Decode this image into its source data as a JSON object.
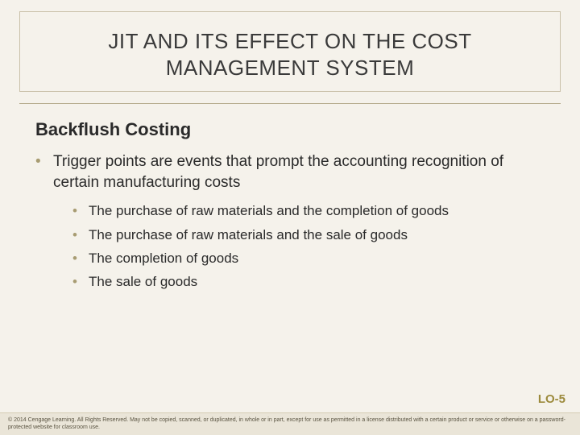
{
  "slide": {
    "title_line1": "JIT AND ITS EFFECT ON THE COST",
    "title_line2": "MANAGEMENT SYSTEM",
    "title_color": "#3a3a3a",
    "title_fontsize": 26,
    "frame_border_color": "#c9c0a8",
    "background_color": "#f5f2eb",
    "divider_color": "#b8ae90"
  },
  "content": {
    "subheading": "Backflush Costing",
    "subheading_fontsize": 22,
    "bullet_color": "#a89c72",
    "main_bullet": "Trigger points are events that prompt the accounting recognition of certain manufacturing costs",
    "main_fontsize": 19,
    "sub_fontsize": 17,
    "sub_bullets": [
      "The purchase of raw materials and the completion of goods",
      "The purchase of raw materials and the sale of goods",
      "The completion of goods",
      "The sale of goods"
    ]
  },
  "lo_tag": {
    "text": "LO-5",
    "color": "#9c8a3c",
    "fontsize": 15
  },
  "footer": {
    "text": "© 2014 Cengage Learning. All Rights Reserved. May not be copied, scanned, or duplicated, in whole or in part, except for use as permitted in a license distributed with a certain product or service or otherwise on a password-protected website for classroom use.",
    "background_color": "#eae5d8",
    "text_color": "#5a5442",
    "fontsize": 7
  }
}
